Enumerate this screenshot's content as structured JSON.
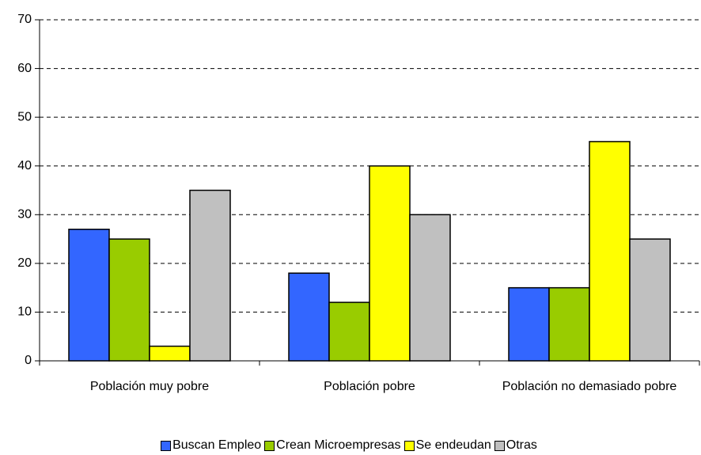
{
  "chart_data": {
    "type": "bar",
    "categories": [
      "Población muy pobre",
      "Población pobre",
      "Población no demasiado pobre"
    ],
    "series": [
      {
        "name": "Buscan Empleo",
        "color": "#3366ff",
        "values": [
          27,
          18,
          15
        ]
      },
      {
        "name": "Crean Microempresas",
        "color": "#99cc00",
        "values": [
          25,
          12,
          15
        ]
      },
      {
        "name": "Se endeudan",
        "color": "#ffff00",
        "values": [
          3,
          40,
          45
        ]
      },
      {
        "name": "Otras",
        "color": "#c0c0c0",
        "values": [
          35,
          30,
          25
        ]
      }
    ],
    "ylim": [
      0,
      70
    ],
    "yticks": [
      0,
      10,
      20,
      30,
      40,
      50,
      60,
      70
    ],
    "grid": true,
    "legend": "bottom"
  }
}
